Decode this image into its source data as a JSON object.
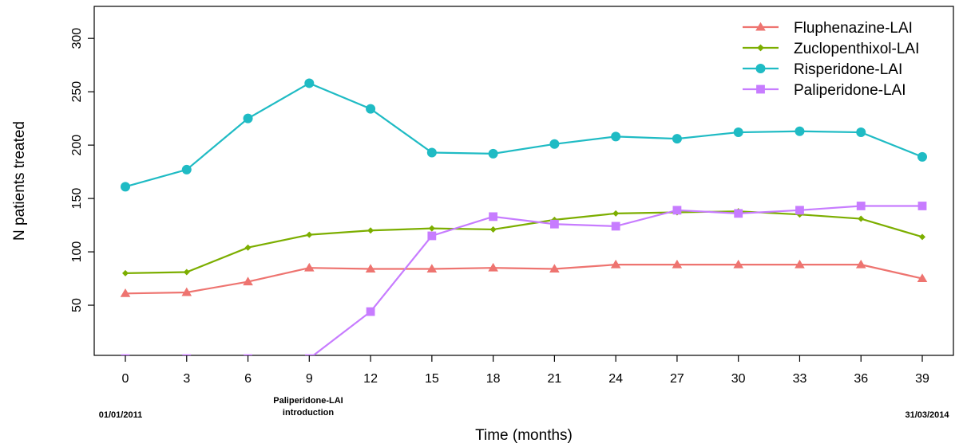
{
  "chart_data": {
    "type": "line",
    "xlabel": "Time (months)",
    "ylabel": "N patients treated",
    "x": [
      0,
      3,
      6,
      9,
      12,
      15,
      18,
      21,
      24,
      27,
      30,
      33,
      36,
      39
    ],
    "xlim": [
      0,
      39
    ],
    "ylim": [
      3,
      330
    ],
    "yticks": [
      50,
      100,
      150,
      200,
      250,
      300
    ],
    "grid": false,
    "legend_position": "top-right",
    "series": [
      {
        "name": "Fluphenazine-LAI",
        "color": "#EE7470",
        "marker": "triangle",
        "values": [
          61,
          62,
          72,
          85,
          84,
          84,
          85,
          84,
          88,
          88,
          88,
          88,
          88,
          75
        ]
      },
      {
        "name": "Zuclopenthixol-LAI",
        "color": "#7CAE00",
        "marker": "diamond",
        "values": [
          80,
          81,
          104,
          116,
          120,
          122,
          121,
          130,
          136,
          137,
          138,
          135,
          131,
          114
        ]
      },
      {
        "name": "Risperidone-LAI",
        "color": "#1FBBC4",
        "marker": "circle",
        "values": [
          161,
          177,
          225,
          258,
          234,
          193,
          192,
          201,
          208,
          206,
          212,
          213,
          212,
          189
        ]
      },
      {
        "name": "Paliperidone-LAI",
        "color": "#C77CFF",
        "marker": "square",
        "values": [
          0,
          0,
          0,
          0,
          44,
          115,
          133,
          126,
          124,
          139,
          136,
          139,
          143,
          143
        ]
      }
    ],
    "annotations": {
      "start_date": "01/01/2011",
      "introduction_line1": "Paliperidone-LAI",
      "introduction_line2": "introduction",
      "end_date": "31/03/2014"
    }
  }
}
